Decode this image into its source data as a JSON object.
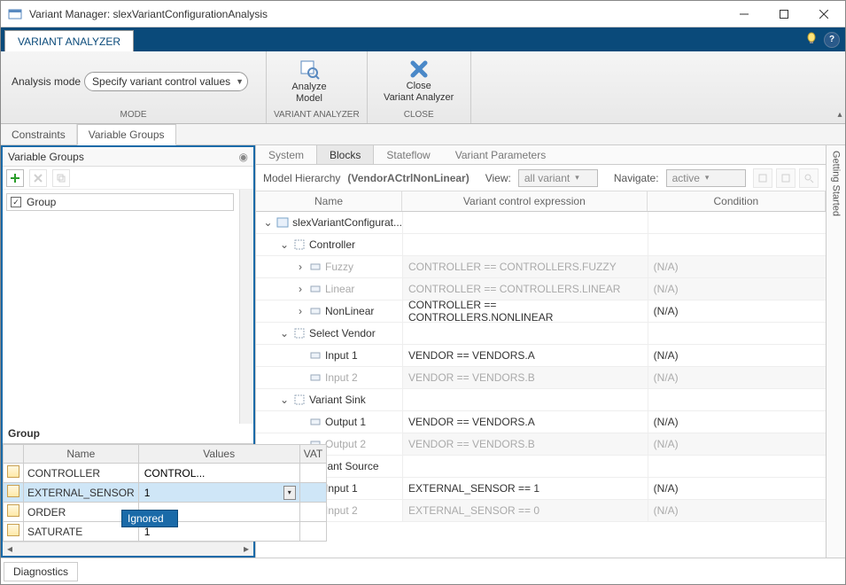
{
  "window": {
    "title": "Variant Manager: slexVariantConfigurationAnalysis"
  },
  "toolstrip": {
    "tab": "VARIANT ANALYZER",
    "lightbulb_tip": "?",
    "help_tip": "?"
  },
  "ribbon": {
    "mode": {
      "label": "Analysis mode",
      "value": "Specify variant control values",
      "group_label": "MODE"
    },
    "analyze": {
      "label": "Analyze\nModel",
      "group_label": "VARIANT ANALYZER"
    },
    "close": {
      "label": "Close\nVariant Analyzer",
      "group_label": "CLOSE"
    }
  },
  "left_tabs": {
    "constraints": "Constraints",
    "variable_groups": "Variable Groups"
  },
  "left": {
    "panel_title": "Variable Groups",
    "group_item": "Group",
    "section_label": "Group",
    "grid": {
      "columns": {
        "name": "Name",
        "values": "Values",
        "vat": "VAT"
      },
      "rows": [
        {
          "name": "CONTROLLER",
          "value": "CONTROL...",
          "selected": false
        },
        {
          "name": "EXTERNAL_SENSOR",
          "value": "1",
          "selected": true
        },
        {
          "name": "ORDER",
          "value": "",
          "selected": false
        },
        {
          "name": "SATURATE",
          "value": "1",
          "selected": false
        }
      ],
      "popup": "Ignored"
    }
  },
  "right_tabs": {
    "system": "System",
    "blocks": "Blocks",
    "stateflow": "Stateflow",
    "vparams": "Variant Parameters"
  },
  "mh": {
    "label": "Model Hierarchy",
    "name": "(VendorACtrlNonLinear)",
    "view_label": "View:",
    "view_value": "all variant",
    "nav_label": "Navigate:",
    "nav_value": "active"
  },
  "tree": {
    "columns": {
      "name": "Name",
      "expr": "Variant control expression",
      "cond": "Condition"
    },
    "rows": [
      {
        "indent": 0,
        "exp": "v",
        "label": "slexVariantConfigurat...",
        "expr": "",
        "cond": "",
        "dim": false
      },
      {
        "indent": 1,
        "exp": "v",
        "label": "Controller",
        "expr": "",
        "cond": "",
        "dim": false
      },
      {
        "indent": 2,
        "exp": ">",
        "label": "Fuzzy",
        "expr": "CONTROLLER == CONTROLLERS.FUZZY",
        "cond": "(N/A)",
        "dim": true
      },
      {
        "indent": 2,
        "exp": ">",
        "label": "Linear",
        "expr": "CONTROLLER == CONTROLLERS.LINEAR",
        "cond": "(N/A)",
        "dim": true
      },
      {
        "indent": 2,
        "exp": ">",
        "label": "NonLinear",
        "expr": "CONTROLLER == CONTROLLERS.NONLINEAR",
        "cond": "(N/A)",
        "dim": false
      },
      {
        "indent": 1,
        "exp": "v",
        "label": "Select Vendor",
        "expr": "",
        "cond": "",
        "dim": false
      },
      {
        "indent": 2,
        "exp": "",
        "label": "Input 1",
        "expr": "VENDOR == VENDORS.A",
        "cond": "(N/A)",
        "dim": false
      },
      {
        "indent": 2,
        "exp": "",
        "label": "Input 2",
        "expr": "VENDOR == VENDORS.B",
        "cond": "(N/A)",
        "dim": true
      },
      {
        "indent": 1,
        "exp": "v",
        "label": "Variant Sink",
        "expr": "",
        "cond": "",
        "dim": false
      },
      {
        "indent": 2,
        "exp": "",
        "label": "Output 1",
        "expr": "VENDOR == VENDORS.A",
        "cond": "(N/A)",
        "dim": false
      },
      {
        "indent": 2,
        "exp": "",
        "label": "Output 2",
        "expr": "VENDOR == VENDORS.B",
        "cond": "(N/A)",
        "dim": true
      },
      {
        "indent": 1,
        "exp": "v",
        "label": "Variant Source",
        "expr": "",
        "cond": "",
        "dim": false
      },
      {
        "indent": 2,
        "exp": "",
        "label": "Input 1",
        "expr": "EXTERNAL_SENSOR == 1",
        "cond": "(N/A)",
        "dim": false
      },
      {
        "indent": 2,
        "exp": "",
        "label": "Input 2",
        "expr": "EXTERNAL_SENSOR == 0",
        "cond": "(N/A)",
        "dim": true
      }
    ]
  },
  "sidetab": "Getting Started",
  "bottom": {
    "diagnostics": "Diagnostics"
  }
}
